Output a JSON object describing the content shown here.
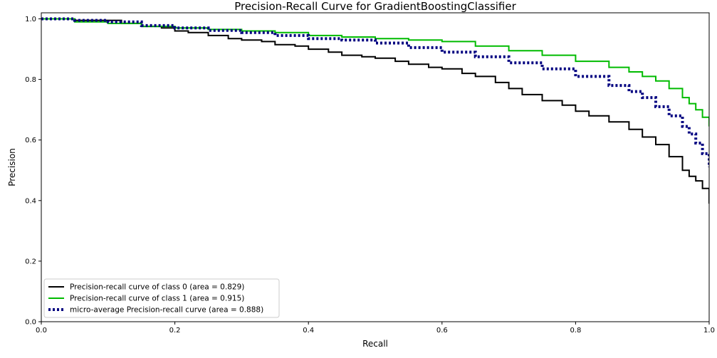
{
  "chart_data": {
    "type": "line",
    "title": "Precision-Recall Curve for GradientBoostingClassifier",
    "xlabel": "Recall",
    "ylabel": "Precision",
    "xlim": [
      0.0,
      1.0
    ],
    "ylim": [
      0.0,
      1.02
    ],
    "xticks": [
      "0.0",
      "0.2",
      "0.4",
      "0.6",
      "0.8",
      "1.0"
    ],
    "yticks": [
      "0.0",
      "0.2",
      "0.4",
      "0.6",
      "0.8",
      "1.0"
    ],
    "grid": false,
    "legend_position": "lower-left",
    "series": [
      {
        "name": "Precision-recall curve of class 0 (area = 0.829)",
        "color": "#000000",
        "style": "solid",
        "x": [
          0.0,
          0.03,
          0.05,
          0.08,
          0.1,
          0.12,
          0.15,
          0.18,
          0.2,
          0.22,
          0.25,
          0.28,
          0.3,
          0.33,
          0.35,
          0.38,
          0.4,
          0.43,
          0.45,
          0.48,
          0.5,
          0.53,
          0.55,
          0.58,
          0.6,
          0.63,
          0.65,
          0.68,
          0.7,
          0.72,
          0.75,
          0.78,
          0.8,
          0.82,
          0.85,
          0.88,
          0.9,
          0.92,
          0.94,
          0.96,
          0.97,
          0.98,
          0.99,
          1.0
        ],
        "y": [
          1.0,
          1.0,
          0.995,
          0.995,
          0.995,
          0.985,
          0.975,
          0.97,
          0.96,
          0.955,
          0.945,
          0.935,
          0.93,
          0.925,
          0.915,
          0.91,
          0.9,
          0.89,
          0.88,
          0.875,
          0.87,
          0.86,
          0.85,
          0.84,
          0.835,
          0.82,
          0.81,
          0.79,
          0.77,
          0.75,
          0.73,
          0.715,
          0.695,
          0.68,
          0.66,
          0.635,
          0.61,
          0.585,
          0.545,
          0.5,
          0.48,
          0.465,
          0.44,
          0.39
        ]
      },
      {
        "name": "Precision-recall curve of class 1 (area = 0.915)",
        "color": "#00bb00",
        "style": "solid",
        "x": [
          0.0,
          0.05,
          0.1,
          0.15,
          0.2,
          0.25,
          0.3,
          0.35,
          0.4,
          0.45,
          0.5,
          0.55,
          0.6,
          0.65,
          0.7,
          0.75,
          0.8,
          0.85,
          0.88,
          0.9,
          0.92,
          0.94,
          0.96,
          0.97,
          0.98,
          0.99,
          1.0
        ],
        "y": [
          1.0,
          0.99,
          0.985,
          0.975,
          0.97,
          0.965,
          0.96,
          0.955,
          0.945,
          0.94,
          0.935,
          0.93,
          0.925,
          0.91,
          0.895,
          0.88,
          0.86,
          0.84,
          0.825,
          0.81,
          0.795,
          0.77,
          0.74,
          0.72,
          0.7,
          0.675,
          0.645
        ]
      },
      {
        "name": "micro-average Precision-recall curve (area = 0.888)",
        "color": "#000080",
        "style": "dotted",
        "x": [
          0.0,
          0.05,
          0.1,
          0.15,
          0.2,
          0.25,
          0.3,
          0.35,
          0.4,
          0.45,
          0.5,
          0.55,
          0.6,
          0.65,
          0.7,
          0.75,
          0.8,
          0.85,
          0.88,
          0.9,
          0.92,
          0.94,
          0.96,
          0.97,
          0.98,
          0.99,
          1.0
        ],
        "y": [
          1.0,
          0.995,
          0.99,
          0.978,
          0.97,
          0.962,
          0.955,
          0.945,
          0.935,
          0.93,
          0.92,
          0.905,
          0.89,
          0.875,
          0.855,
          0.835,
          0.81,
          0.78,
          0.76,
          0.74,
          0.71,
          0.68,
          0.645,
          0.62,
          0.59,
          0.555,
          0.51
        ]
      }
    ]
  }
}
